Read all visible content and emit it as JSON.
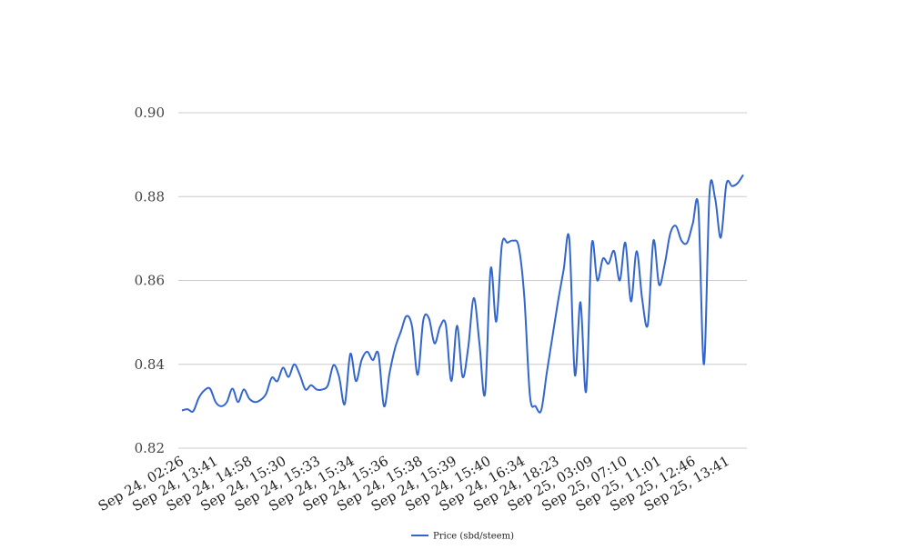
{
  "chart_data": {
    "type": "line",
    "title": "",
    "xlabel": "",
    "ylabel": "",
    "ylim": [
      0.82,
      0.9
    ],
    "yticks": [
      "0.82",
      "0.84",
      "0.86",
      "0.88",
      "0.90"
    ],
    "xtick_labels": [
      "Sep 24, 02:26",
      "Sep 24, 13:41",
      "Sep 24, 14:58",
      "Sep 24, 15:30",
      "Sep 24, 15:33",
      "Sep 24, 15:34",
      "Sep 24, 15:36",
      "Sep 24, 15:38",
      "Sep 24, 15:39",
      "Sep 24, 15:40",
      "Sep 24, 16:34",
      "Sep 24, 18:23",
      "Sep 25, 03:09",
      "Sep 25, 07:10",
      "Sep 25, 11:01",
      "Sep 25, 12:46",
      "Sep 25, 13:41"
    ],
    "grid": true,
    "legend_position": "bottom",
    "series": [
      {
        "name": "Price (sbd/steem)",
        "color": "#3366cc",
        "values": [
          0.829,
          0.8293,
          0.8288,
          0.832,
          0.8338,
          0.8342,
          0.831,
          0.83,
          0.831,
          0.8342,
          0.831,
          0.834,
          0.8318,
          0.831,
          0.8315,
          0.833,
          0.8368,
          0.836,
          0.8392,
          0.837,
          0.84,
          0.8375,
          0.834,
          0.835,
          0.834,
          0.834,
          0.835,
          0.8398,
          0.837,
          0.8305,
          0.8425,
          0.836,
          0.841,
          0.843,
          0.841,
          0.8425,
          0.83,
          0.838,
          0.844,
          0.8478,
          0.8515,
          0.849,
          0.8375,
          0.8505,
          0.851,
          0.845,
          0.849,
          0.8495,
          0.836,
          0.8492,
          0.837,
          0.844,
          0.8558,
          0.845,
          0.833,
          0.8628,
          0.8502,
          0.8685,
          0.869,
          0.8695,
          0.868,
          0.856,
          0.8325,
          0.83,
          0.829,
          0.838,
          0.8465,
          0.855,
          0.8625,
          0.87,
          0.8375,
          0.8548,
          0.8335,
          0.8685,
          0.86,
          0.8652,
          0.864,
          0.867,
          0.86,
          0.869,
          0.855,
          0.867,
          0.8555,
          0.8495,
          0.8695,
          0.859,
          0.8638,
          0.8712,
          0.873,
          0.8695,
          0.869,
          0.8735,
          0.8775,
          0.84,
          0.881,
          0.8795,
          0.8702,
          0.883,
          0.8825,
          0.8832,
          0.8852
        ]
      }
    ]
  }
}
